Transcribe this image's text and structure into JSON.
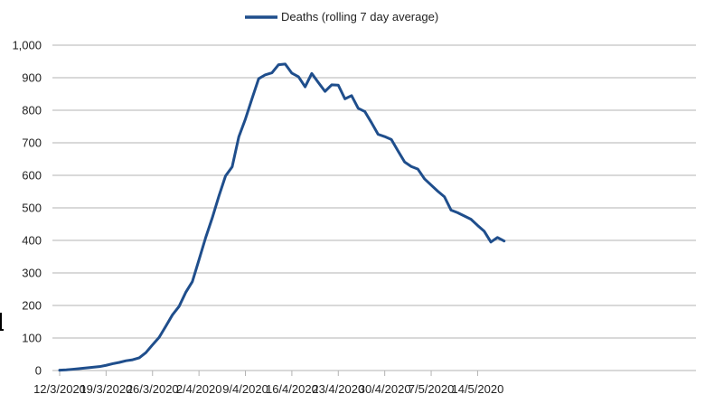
{
  "chart_data": {
    "type": "line",
    "title": "",
    "xlabel": "",
    "ylabel": "",
    "ylim": [
      0,
      1000
    ],
    "y_ticks": [
      "0",
      "100",
      "200",
      "300",
      "400",
      "500",
      "600",
      "700",
      "800",
      "900",
      "1,000"
    ],
    "x_tick_labels": [
      "12/3/2020",
      "19/3/2020",
      "26/3/2020",
      "2/4/2020",
      "9/4/2020",
      "16/4/2020",
      "23/4/2020",
      "30/4/2020",
      "7/5/2020",
      "14/5/2020"
    ],
    "grid": "horizontal",
    "legend_position": "top-center",
    "series": [
      {
        "name": "Deaths (rolling 7 day average)",
        "color": "#1f4e8c",
        "x_start": "12/3/2020",
        "values": [
          1,
          2,
          4,
          6,
          8,
          10,
          12,
          16,
          21,
          25,
          30,
          33,
          39,
          55,
          79,
          102,
          136,
          171,
          197,
          240,
          273,
          340,
          408,
          469,
          536,
          598,
          626,
          718,
          773,
          836,
          897,
          909,
          915,
          940,
          942,
          914,
          903,
          872,
          913,
          885,
          858,
          878,
          877,
          835,
          845,
          806,
          796,
          762,
          726,
          719,
          710,
          675,
          641,
          627,
          619,
          589,
          570,
          551,
          534,
          493,
          485,
          475,
          465,
          446,
          428,
          395,
          409,
          398
        ]
      }
    ]
  }
}
